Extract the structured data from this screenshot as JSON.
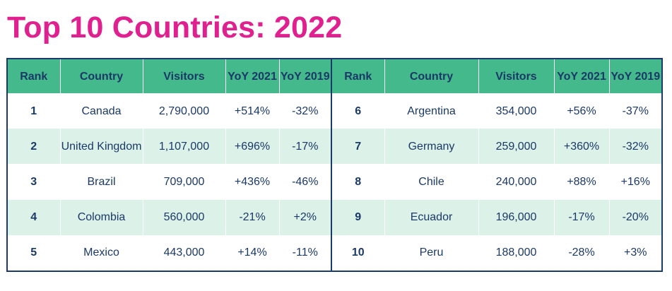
{
  "title": "Top 10 Countries: 2022",
  "colors": {
    "title": "#e0208f",
    "header_bg": "#43b98c",
    "header_text": "#1b3966",
    "stripe": "#dcf1e8",
    "border": "#1a3a6b"
  },
  "headers": {
    "rank": "Rank",
    "country": "Country",
    "visitors": "Visitors",
    "yoy2021": "YoY 2021",
    "yoy2019": "YoY 2019"
  },
  "rows": [
    {
      "left": {
        "rank": "1",
        "country": "Canada",
        "visitors": "2,790,000",
        "yoy2021": "+514%",
        "yoy2019": "-32%"
      },
      "right": {
        "rank": "6",
        "country": "Argentina",
        "visitors": "354,000",
        "yoy2021": "+56%",
        "yoy2019": "-37%"
      }
    },
    {
      "left": {
        "rank": "2",
        "country": "United Kingdom",
        "visitors": "1,107,000",
        "yoy2021": "+696%",
        "yoy2019": "-17%"
      },
      "right": {
        "rank": "7",
        "country": "Germany",
        "visitors": "259,000",
        "yoy2021": "+360%",
        "yoy2019": "-32%"
      }
    },
    {
      "left": {
        "rank": "3",
        "country": "Brazil",
        "visitors": "709,000",
        "yoy2021": "+436%",
        "yoy2019": "-46%"
      },
      "right": {
        "rank": "8",
        "country": "Chile",
        "visitors": "240,000",
        "yoy2021": "+88%",
        "yoy2019": "+16%"
      }
    },
    {
      "left": {
        "rank": "4",
        "country": "Colombia",
        "visitors": "560,000",
        "yoy2021": "-21%",
        "yoy2019": "+2%"
      },
      "right": {
        "rank": "9",
        "country": "Ecuador",
        "visitors": "196,000",
        "yoy2021": "-17%",
        "yoy2019": "-20%"
      }
    },
    {
      "left": {
        "rank": "5",
        "country": "Mexico",
        "visitors": "443,000",
        "yoy2021": "+14%",
        "yoy2019": "-11%"
      },
      "right": {
        "rank": "10",
        "country": "Peru",
        "visitors": "188,000",
        "yoy2021": "-28%",
        "yoy2019": "+3%"
      }
    }
  ]
}
